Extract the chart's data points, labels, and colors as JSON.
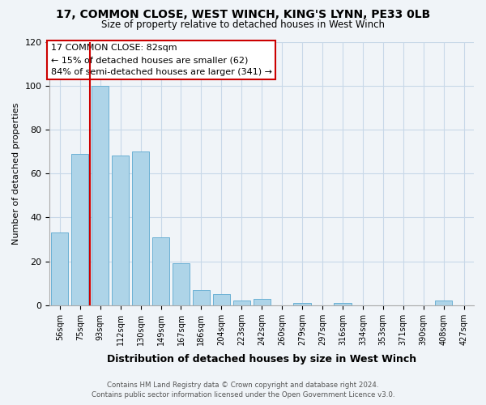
{
  "title": "17, COMMON CLOSE, WEST WINCH, KING'S LYNN, PE33 0LB",
  "subtitle": "Size of property relative to detached houses in West Winch",
  "xlabel": "Distribution of detached houses by size in West Winch",
  "ylabel": "Number of detached properties",
  "bar_labels": [
    "56sqm",
    "75sqm",
    "93sqm",
    "112sqm",
    "130sqm",
    "149sqm",
    "167sqm",
    "186sqm",
    "204sqm",
    "223sqm",
    "242sqm",
    "260sqm",
    "279sqm",
    "297sqm",
    "316sqm",
    "334sqm",
    "353sqm",
    "371sqm",
    "390sqm",
    "408sqm",
    "427sqm"
  ],
  "bar_values": [
    33,
    69,
    100,
    68,
    70,
    31,
    19,
    7,
    5,
    2,
    3,
    0,
    1,
    0,
    1,
    0,
    0,
    0,
    0,
    2,
    0
  ],
  "bar_color": "#aed4e8",
  "bar_edge_color": "#6ab0d4",
  "vline_color": "#cc0000",
  "vline_pos": 1.5,
  "ylim": [
    0,
    120
  ],
  "yticks": [
    0,
    20,
    40,
    60,
    80,
    100,
    120
  ],
  "annotation_title": "17 COMMON CLOSE: 82sqm",
  "annotation_line1": "← 15% of detached houses are smaller (62)",
  "annotation_line2": "84% of semi-detached houses are larger (341) →",
  "annotation_box_color": "#ffffff",
  "annotation_box_edge": "#cc0000",
  "footer1": "Contains HM Land Registry data © Crown copyright and database right 2024.",
  "footer2": "Contains public sector information licensed under the Open Government Licence v3.0.",
  "bg_color": "#f0f4f8",
  "grid_color": "#c8d8e8"
}
